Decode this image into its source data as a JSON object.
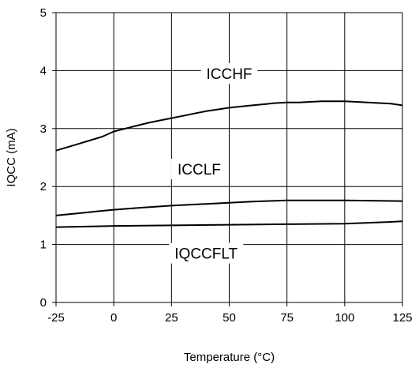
{
  "chart_data": {
    "type": "line",
    "title": "",
    "xlabel": "Temperature (°C)",
    "ylabel": "IQCC (mA)",
    "xlim": [
      -25,
      125
    ],
    "ylim": [
      0,
      5
    ],
    "x_ticks": [
      "-25",
      "0",
      "25",
      "50",
      "75",
      "100",
      "125"
    ],
    "y_ticks": [
      "0",
      "1",
      "2",
      "3",
      "4",
      "5"
    ],
    "grid": true,
    "legend": "none",
    "line_color": "#000000",
    "series": [
      {
        "name": "ICCHF",
        "x": [
          -25,
          -20,
          -15,
          -10,
          -5,
          0,
          5,
          10,
          15,
          20,
          25,
          30,
          35,
          40,
          45,
          50,
          55,
          60,
          65,
          70,
          75,
          80,
          85,
          90,
          95,
          100,
          105,
          110,
          115,
          120,
          125
        ],
        "y": [
          2.62,
          2.68,
          2.74,
          2.8,
          2.86,
          2.95,
          3.0,
          3.05,
          3.1,
          3.14,
          3.18,
          3.22,
          3.26,
          3.3,
          3.33,
          3.36,
          3.38,
          3.4,
          3.42,
          3.44,
          3.45,
          3.45,
          3.46,
          3.47,
          3.47,
          3.47,
          3.46,
          3.45,
          3.44,
          3.43,
          3.4
        ]
      },
      {
        "name": "ICCLF",
        "x": [
          -25,
          -15,
          -5,
          0,
          10,
          25,
          40,
          50,
          60,
          75,
          100,
          125
        ],
        "y": [
          1.5,
          1.54,
          1.58,
          1.6,
          1.63,
          1.67,
          1.7,
          1.72,
          1.74,
          1.76,
          1.76,
          1.75
        ]
      },
      {
        "name": "IQCCFLT",
        "x": [
          -25,
          -10,
          0,
          25,
          50,
          75,
          100,
          120,
          125
        ],
        "y": [
          1.3,
          1.31,
          1.32,
          1.33,
          1.34,
          1.35,
          1.36,
          1.39,
          1.4
        ]
      }
    ],
    "labels": [
      {
        "text": "ICCHF",
        "x": 50,
        "y": 3.95
      },
      {
        "text": "ICCLF",
        "x": 37,
        "y": 2.3
      },
      {
        "text": "IQCCFLT",
        "x": 40,
        "y": 0.85
      }
    ]
  }
}
